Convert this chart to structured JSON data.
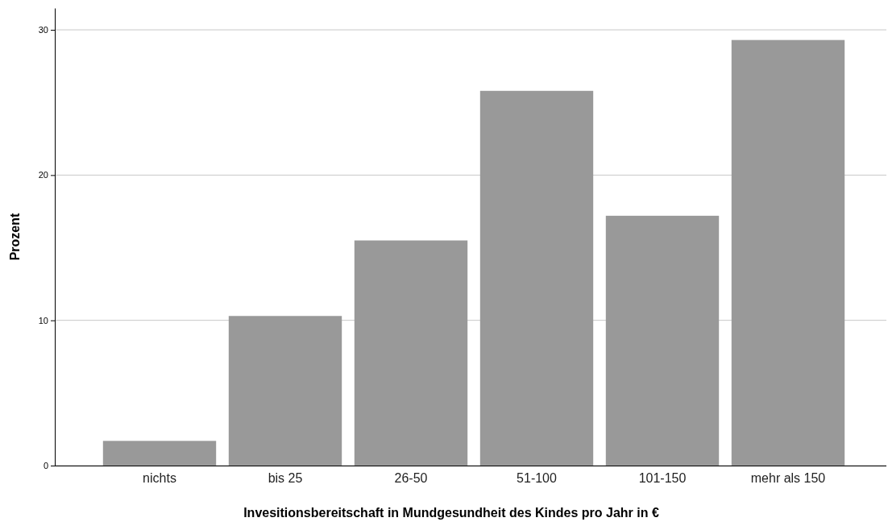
{
  "chart_data": {
    "type": "bar",
    "xlabel": "Invesitionsbereitschaft in Mundgesundheit des Kindes pro Jahr in €",
    "ylabel": "Prozent",
    "categories": [
      "nichts",
      "bis 25",
      "26-50",
      "51-100",
      "101-150",
      "mehr als 150"
    ],
    "values": [
      1.7,
      10.3,
      15.5,
      25.8,
      17.2,
      29.3
    ],
    "color": "#999999",
    "ylim": [
      0,
      31.5
    ],
    "yticks": [
      0,
      10,
      20,
      30
    ],
    "grid": "y"
  }
}
